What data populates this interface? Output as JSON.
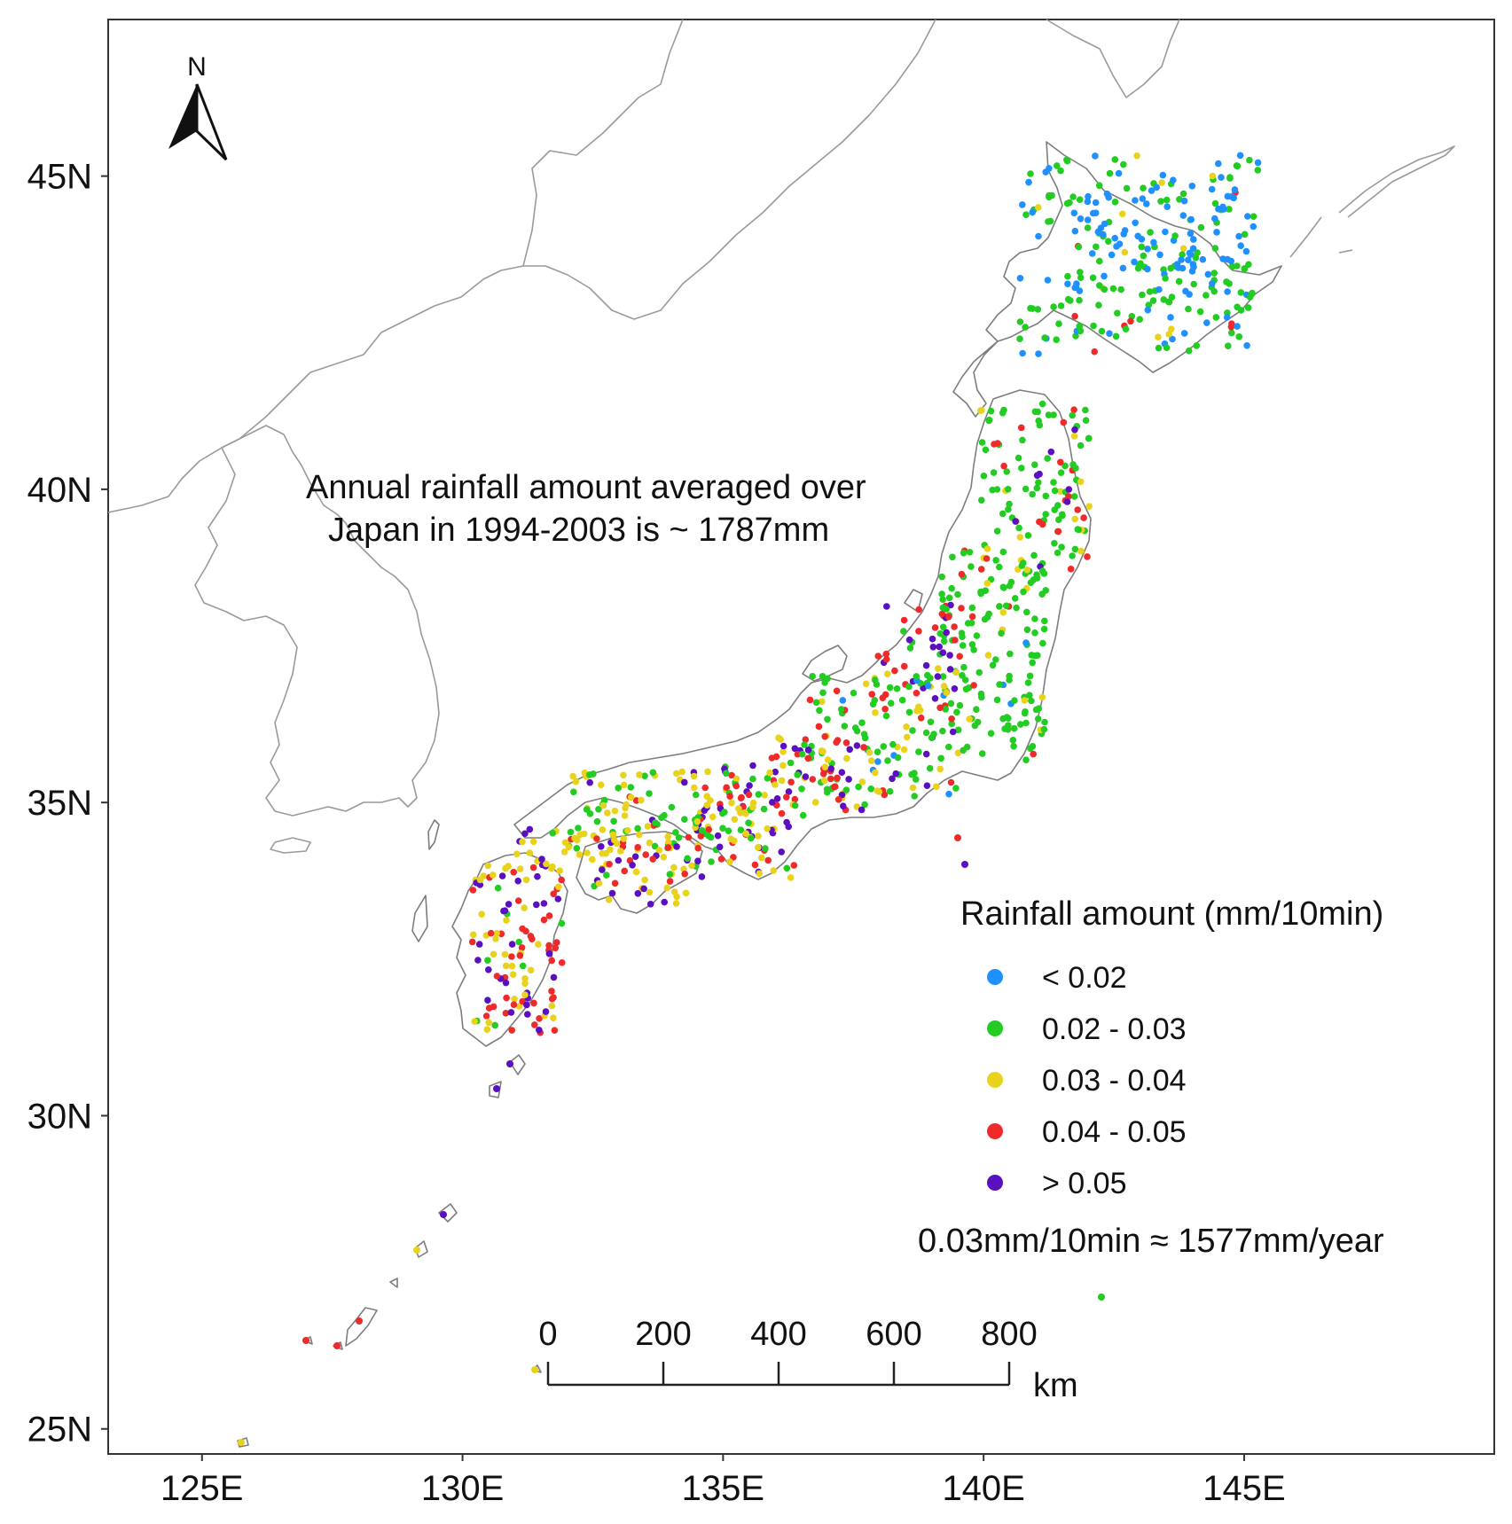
{
  "map": {
    "lon_range": [
      123.2,
      149.8
    ],
    "lat_range": [
      24.6,
      47.5
    ],
    "lon_ticks": [
      {
        "value": 125,
        "label": "125E"
      },
      {
        "value": 130,
        "label": "130E"
      },
      {
        "value": 135,
        "label": "135E"
      },
      {
        "value": 140,
        "label": "140E"
      },
      {
        "value": 145,
        "label": "145E"
      }
    ],
    "lat_ticks": [
      {
        "value": 45,
        "label": "45N"
      },
      {
        "value": 40,
        "label": "40N"
      },
      {
        "value": 35,
        "label": "35N"
      },
      {
        "value": 30,
        "label": "30N"
      },
      {
        "value": 25,
        "label": "25N"
      }
    ],
    "north_arrow_label": "N"
  },
  "annotation": {
    "line1": "Annual rainfall amount averaged over",
    "line2": "Japan in 1994-2003 is ~ 1787mm"
  },
  "legend": {
    "title": "Rainfall amount (mm/10min)",
    "entries": [
      {
        "label": "< 0.02",
        "color": "#1e90ff"
      },
      {
        "label": "0.02 - 0.03",
        "color": "#22cc22"
      },
      {
        "label": "0.03 - 0.04",
        "color": "#e8d21c"
      },
      {
        "label": "0.04 - 0.05",
        "color": "#ee2a2a"
      },
      {
        "label": "> 0.05",
        "color": "#5a0fc0"
      }
    ],
    "conversion_note": "0.03mm/10min ≈ 1577mm/year"
  },
  "scale_bar": {
    "ticks": [
      "0",
      "200",
      "400",
      "600",
      "800"
    ],
    "unit": "km"
  }
}
